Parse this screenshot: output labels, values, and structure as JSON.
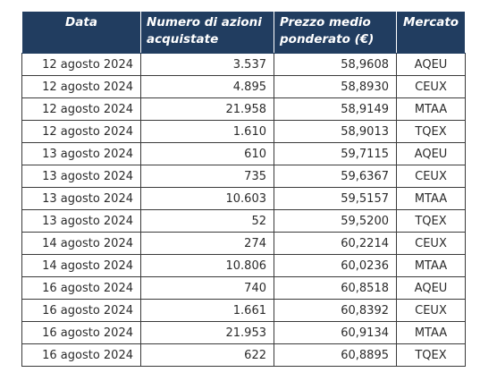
{
  "table": {
    "headers": {
      "date": "Data",
      "shares": "Numero di azioni acquistate",
      "price": "Prezzo medio ponderato (€)",
      "market": "Mercato"
    },
    "rows": [
      {
        "date": "12 agosto 2024",
        "shares": "3.537",
        "price": "58,9608",
        "market": "AQEU"
      },
      {
        "date": "12 agosto 2024",
        "shares": "4.895",
        "price": "58,8930",
        "market": "CEUX"
      },
      {
        "date": "12 agosto 2024",
        "shares": "21.958",
        "price": "58,9149",
        "market": "MTAA"
      },
      {
        "date": "12 agosto 2024",
        "shares": "1.610",
        "price": "58,9013",
        "market": "TQEX"
      },
      {
        "date": "13 agosto 2024",
        "shares": "610",
        "price": "59,7115",
        "market": "AQEU"
      },
      {
        "date": "13 agosto 2024",
        "shares": "735",
        "price": "59,6367",
        "market": "CEUX"
      },
      {
        "date": "13 agosto 2024",
        "shares": "10.603",
        "price": "59,5157",
        "market": "MTAA"
      },
      {
        "date": "13 agosto 2024",
        "shares": "52",
        "price": "59,5200",
        "market": "TQEX"
      },
      {
        "date": "14 agosto 2024",
        "shares": "274",
        "price": "60,2214",
        "market": "CEUX"
      },
      {
        "date": "14 agosto 2024",
        "shares": "10.806",
        "price": "60,0236",
        "market": "MTAA"
      },
      {
        "date": "16 agosto 2024",
        "shares": "740",
        "price": "60,8518",
        "market": "AQEU"
      },
      {
        "date": "16 agosto 2024",
        "shares": "1.661",
        "price": "60,8392",
        "market": "CEUX"
      },
      {
        "date": "16 agosto 2024",
        "shares": "21.953",
        "price": "60,9134",
        "market": "MTAA"
      },
      {
        "date": "16 agosto 2024",
        "shares": "622",
        "price": "60,8895",
        "market": "TQEX"
      }
    ]
  },
  "colors": {
    "header_bg": "#213d60",
    "header_text": "#ffffff",
    "border": "#3a3a3a"
  }
}
